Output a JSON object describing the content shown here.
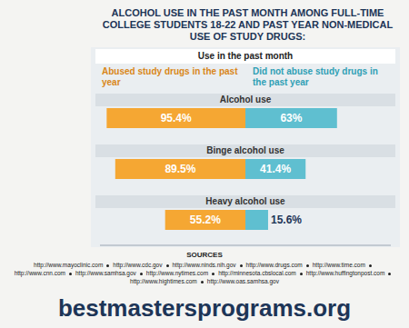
{
  "chart_data": {
    "type": "bar",
    "title": "ALCOHOL USE IN THE PAST MONTH AMONG FULL-TIME COLLEGE STUDENTS 18-22 AND PAST YEAR NON-MEDICAL USE OF STUDY DRUGS:",
    "subtitle": "Use in the past month",
    "orientation": "horizontal",
    "categories": [
      "Alcohol use",
      "Binge alcohol use",
      "Heavy alcohol use"
    ],
    "series": [
      {
        "name": "Abused study drugs in the past year",
        "color": "#f5a733",
        "values": [
          95.4,
          89.5,
          55.2
        ],
        "value_labels": [
          "95.4%",
          "89.5%",
          "55.2%"
        ]
      },
      {
        "name": "Did not abuse study drugs in the past year",
        "color": "#5fbfd0",
        "values": [
          63,
          41.4,
          15.6
        ],
        "value_labels": [
          "63%",
          "41.4%",
          "15.6%"
        ]
      }
    ],
    "xlim": [
      0,
      100
    ],
    "xticks": [
      0,
      100
    ],
    "tick_labels": false,
    "data_labels": true,
    "legend": "top",
    "grid": false
  },
  "sources": {
    "title": "SOURCES",
    "items": [
      "http://www.mayoclinic.com",
      "http://www.cdc.gov",
      "http://www.ninds.nih.gov",
      "http://www.drugs.com",
      "http://www.time.com",
      "http://www.cnn.com",
      "http://www.samhsa.gov",
      "http://www.nytimes.com",
      "http://minnesota.cbslocal.com",
      "http://www.huffingtonpost.com",
      "http://www.hightimes.com",
      "http://www.oas.samhsa.gov"
    ]
  },
  "footer": "bestmastersprograms.org"
}
